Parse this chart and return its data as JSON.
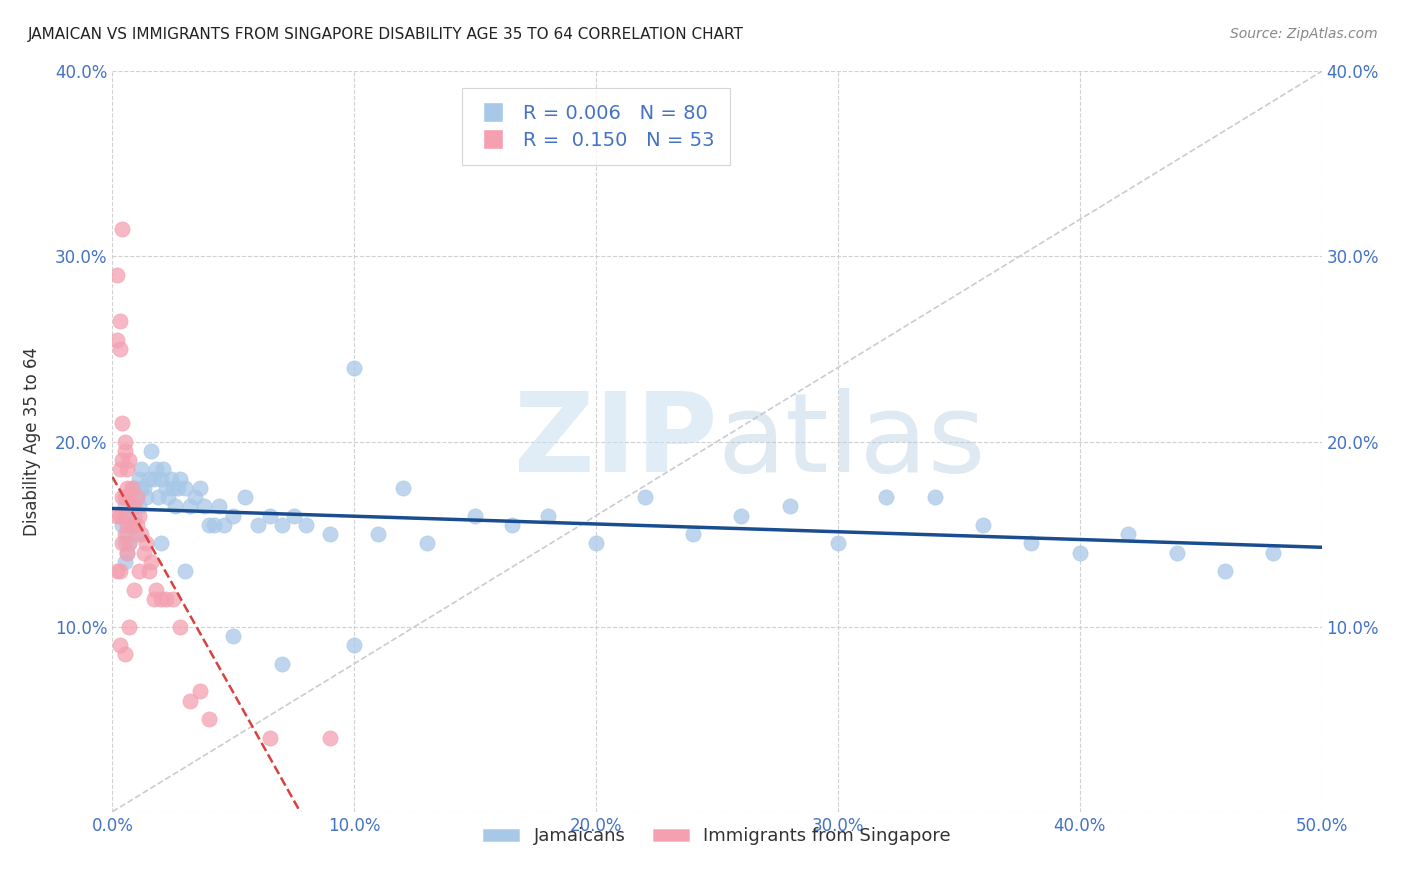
{
  "title": "JAMAICAN VS IMMIGRANTS FROM SINGAPORE DISABILITY AGE 35 TO 64 CORRELATION CHART",
  "source": "Source: ZipAtlas.com",
  "ylabel": "Disability Age 35 to 64",
  "xlim": [
    0.0,
    0.5
  ],
  "ylim": [
    0.0,
    0.4
  ],
  "xticks": [
    0.0,
    0.1,
    0.2,
    0.3,
    0.4,
    0.5
  ],
  "yticks": [
    0.0,
    0.1,
    0.2,
    0.3,
    0.4
  ],
  "blue_color": "#a8c8e8",
  "pink_color": "#f4a0b0",
  "blue_line_color": "#1a4d8f",
  "pink_line_color": "#d94040",
  "diagonal_color": "#cccccc",
  "watermark_zip": "ZIP",
  "watermark_atlas": "atlas",
  "legend_label1": "Jamaicans",
  "legend_label2": "Immigrants from Singapore",
  "blue_r": 0.006,
  "blue_n": 80,
  "pink_r": 0.15,
  "pink_n": 53,
  "blue_scatter_x": [
    0.004,
    0.005,
    0.005,
    0.005,
    0.006,
    0.006,
    0.006,
    0.007,
    0.007,
    0.007,
    0.008,
    0.008,
    0.009,
    0.009,
    0.01,
    0.01,
    0.011,
    0.011,
    0.012,
    0.012,
    0.013,
    0.014,
    0.015,
    0.016,
    0.017,
    0.018,
    0.019,
    0.02,
    0.021,
    0.022,
    0.023,
    0.024,
    0.025,
    0.026,
    0.027,
    0.028,
    0.03,
    0.032,
    0.034,
    0.036,
    0.038,
    0.04,
    0.042,
    0.044,
    0.046,
    0.05,
    0.055,
    0.06,
    0.065,
    0.07,
    0.075,
    0.08,
    0.09,
    0.1,
    0.11,
    0.12,
    0.13,
    0.15,
    0.165,
    0.18,
    0.2,
    0.22,
    0.24,
    0.26,
    0.28,
    0.3,
    0.32,
    0.34,
    0.36,
    0.38,
    0.4,
    0.42,
    0.44,
    0.46,
    0.48,
    0.02,
    0.03,
    0.05,
    0.07,
    0.1
  ],
  "blue_scatter_y": [
    0.155,
    0.165,
    0.145,
    0.135,
    0.16,
    0.15,
    0.14,
    0.17,
    0.155,
    0.145,
    0.165,
    0.155,
    0.175,
    0.16,
    0.17,
    0.15,
    0.18,
    0.165,
    0.185,
    0.175,
    0.175,
    0.17,
    0.18,
    0.195,
    0.18,
    0.185,
    0.17,
    0.18,
    0.185,
    0.175,
    0.17,
    0.18,
    0.175,
    0.165,
    0.175,
    0.18,
    0.175,
    0.165,
    0.17,
    0.175,
    0.165,
    0.155,
    0.155,
    0.165,
    0.155,
    0.16,
    0.17,
    0.155,
    0.16,
    0.155,
    0.16,
    0.155,
    0.15,
    0.24,
    0.15,
    0.175,
    0.145,
    0.16,
    0.155,
    0.16,
    0.145,
    0.17,
    0.15,
    0.16,
    0.165,
    0.145,
    0.17,
    0.17,
    0.155,
    0.145,
    0.14,
    0.15,
    0.14,
    0.13,
    0.14,
    0.145,
    0.13,
    0.095,
    0.08,
    0.09
  ],
  "pink_scatter_x": [
    0.002,
    0.002,
    0.002,
    0.002,
    0.003,
    0.003,
    0.003,
    0.003,
    0.003,
    0.003,
    0.004,
    0.004,
    0.004,
    0.004,
    0.004,
    0.005,
    0.005,
    0.005,
    0.005,
    0.005,
    0.005,
    0.006,
    0.006,
    0.006,
    0.006,
    0.007,
    0.007,
    0.007,
    0.007,
    0.008,
    0.008,
    0.009,
    0.009,
    0.01,
    0.01,
    0.011,
    0.011,
    0.012,
    0.013,
    0.014,
    0.015,
    0.016,
    0.017,
    0.018,
    0.02,
    0.022,
    0.025,
    0.028,
    0.032,
    0.036,
    0.04,
    0.065,
    0.09
  ],
  "pink_scatter_y": [
    0.29,
    0.255,
    0.16,
    0.13,
    0.265,
    0.25,
    0.185,
    0.16,
    0.13,
    0.09,
    0.315,
    0.21,
    0.19,
    0.17,
    0.145,
    0.2,
    0.195,
    0.17,
    0.16,
    0.15,
    0.085,
    0.185,
    0.175,
    0.155,
    0.14,
    0.19,
    0.17,
    0.145,
    0.1,
    0.175,
    0.155,
    0.165,
    0.12,
    0.17,
    0.155,
    0.16,
    0.13,
    0.15,
    0.14,
    0.145,
    0.13,
    0.135,
    0.115,
    0.12,
    0.115,
    0.115,
    0.115,
    0.1,
    0.06,
    0.065,
    0.05,
    0.04,
    0.04
  ]
}
